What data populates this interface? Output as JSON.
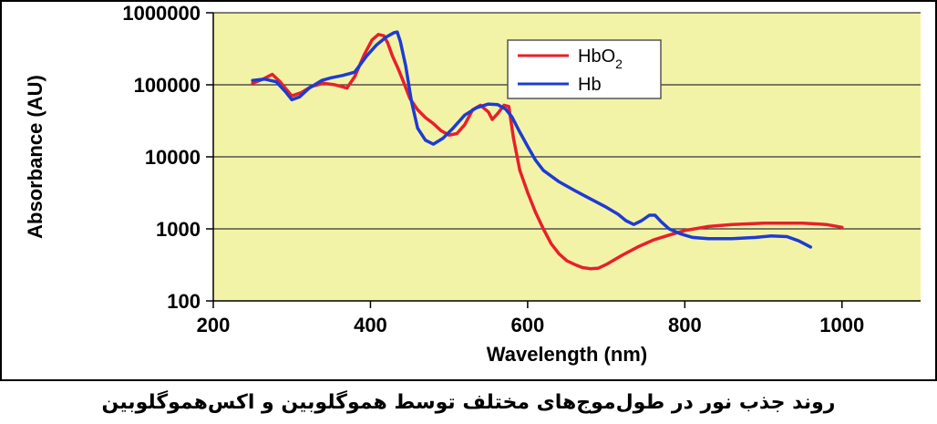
{
  "caption": "روند جذب نور در طول‌موج‌های مختلف توسط هموگلوبین و اکس‌هموگلوبین",
  "chart_data": {
    "type": "line",
    "title": "",
    "xlabel": "Wavelength (nm)",
    "ylabel": "Absorbance (AU)",
    "x_scale": "linear",
    "y_scale": "log",
    "xlim": [
      200,
      1100
    ],
    "ylim": [
      100,
      1000000
    ],
    "xticks": [
      200,
      400,
      600,
      800,
      1000
    ],
    "xtick_labels": [
      "200",
      "400",
      "600",
      "800",
      "1000"
    ],
    "yticks": [
      100,
      1000,
      10000,
      100000,
      1000000
    ],
    "ytick_labels": [
      "100",
      "1000",
      "10000",
      "100000",
      "1000000"
    ],
    "grid": "horizontal",
    "legend_position": "top-right",
    "plot_background": "#f3f3a8",
    "series": [
      {
        "name": "HbO2",
        "color": "#e8202a",
        "points": [
          [
            250,
            105000
          ],
          [
            262,
            118000
          ],
          [
            275,
            140000
          ],
          [
            285,
            110000
          ],
          [
            300,
            70000
          ],
          [
            312,
            78000
          ],
          [
            325,
            95000
          ],
          [
            340,
            105000
          ],
          [
            355,
            100000
          ],
          [
            370,
            90000
          ],
          [
            380,
            130000
          ],
          [
            392,
            260000
          ],
          [
            402,
            420000
          ],
          [
            410,
            500000
          ],
          [
            417,
            480000
          ],
          [
            422,
            380000
          ],
          [
            428,
            250000
          ],
          [
            435,
            170000
          ],
          [
            442,
            110000
          ],
          [
            450,
            65000
          ],
          [
            460,
            45000
          ],
          [
            470,
            35000
          ],
          [
            480,
            29000
          ],
          [
            490,
            23000
          ],
          [
            500,
            20000
          ],
          [
            510,
            21000
          ],
          [
            520,
            28000
          ],
          [
            530,
            45000
          ],
          [
            540,
            52000
          ],
          [
            550,
            42000
          ],
          [
            555,
            33000
          ],
          [
            562,
            40000
          ],
          [
            570,
            52000
          ],
          [
            576,
            50000
          ],
          [
            582,
            18000
          ],
          [
            590,
            6500
          ],
          [
            600,
            3200
          ],
          [
            610,
            1700
          ],
          [
            620,
            1000
          ],
          [
            630,
            620
          ],
          [
            640,
            450
          ],
          [
            650,
            360
          ],
          [
            660,
            320
          ],
          [
            670,
            290
          ],
          [
            680,
            280
          ],
          [
            690,
            285
          ],
          [
            700,
            320
          ],
          [
            720,
            430
          ],
          [
            740,
            560
          ],
          [
            760,
            700
          ],
          [
            780,
            820
          ],
          [
            800,
            950
          ],
          [
            830,
            1080
          ],
          [
            860,
            1150
          ],
          [
            900,
            1200
          ],
          [
            950,
            1200
          ],
          [
            980,
            1150
          ],
          [
            1000,
            1050
          ]
        ]
      },
      {
        "name": "Hb",
        "color": "#1e3bd4",
        "points": [
          [
            250,
            115000
          ],
          [
            265,
            120000
          ],
          [
            280,
            110000
          ],
          [
            292,
            80000
          ],
          [
            300,
            62000
          ],
          [
            310,
            68000
          ],
          [
            322,
            90000
          ],
          [
            338,
            115000
          ],
          [
            350,
            125000
          ],
          [
            365,
            135000
          ],
          [
            380,
            150000
          ],
          [
            395,
            250000
          ],
          [
            408,
            360000
          ],
          [
            420,
            460000
          ],
          [
            430,
            530000
          ],
          [
            434,
            540000
          ],
          [
            438,
            400000
          ],
          [
            445,
            180000
          ],
          [
            452,
            60000
          ],
          [
            460,
            25000
          ],
          [
            470,
            17000
          ],
          [
            480,
            15000
          ],
          [
            492,
            18000
          ],
          [
            505,
            25000
          ],
          [
            520,
            38000
          ],
          [
            535,
            48000
          ],
          [
            550,
            54000
          ],
          [
            562,
            53000
          ],
          [
            572,
            46000
          ],
          [
            580,
            36000
          ],
          [
            590,
            22000
          ],
          [
            600,
            14000
          ],
          [
            610,
            9000
          ],
          [
            620,
            6500
          ],
          [
            640,
            4500
          ],
          [
            660,
            3400
          ],
          [
            680,
            2600
          ],
          [
            700,
            2000
          ],
          [
            715,
            1600
          ],
          [
            725,
            1300
          ],
          [
            735,
            1150
          ],
          [
            745,
            1300
          ],
          [
            755,
            1550
          ],
          [
            762,
            1550
          ],
          [
            770,
            1250
          ],
          [
            780,
            1000
          ],
          [
            795,
            850
          ],
          [
            810,
            760
          ],
          [
            830,
            730
          ],
          [
            860,
            730
          ],
          [
            890,
            760
          ],
          [
            910,
            800
          ],
          [
            930,
            780
          ],
          [
            945,
            680
          ],
          [
            960,
            560
          ]
        ]
      }
    ]
  }
}
